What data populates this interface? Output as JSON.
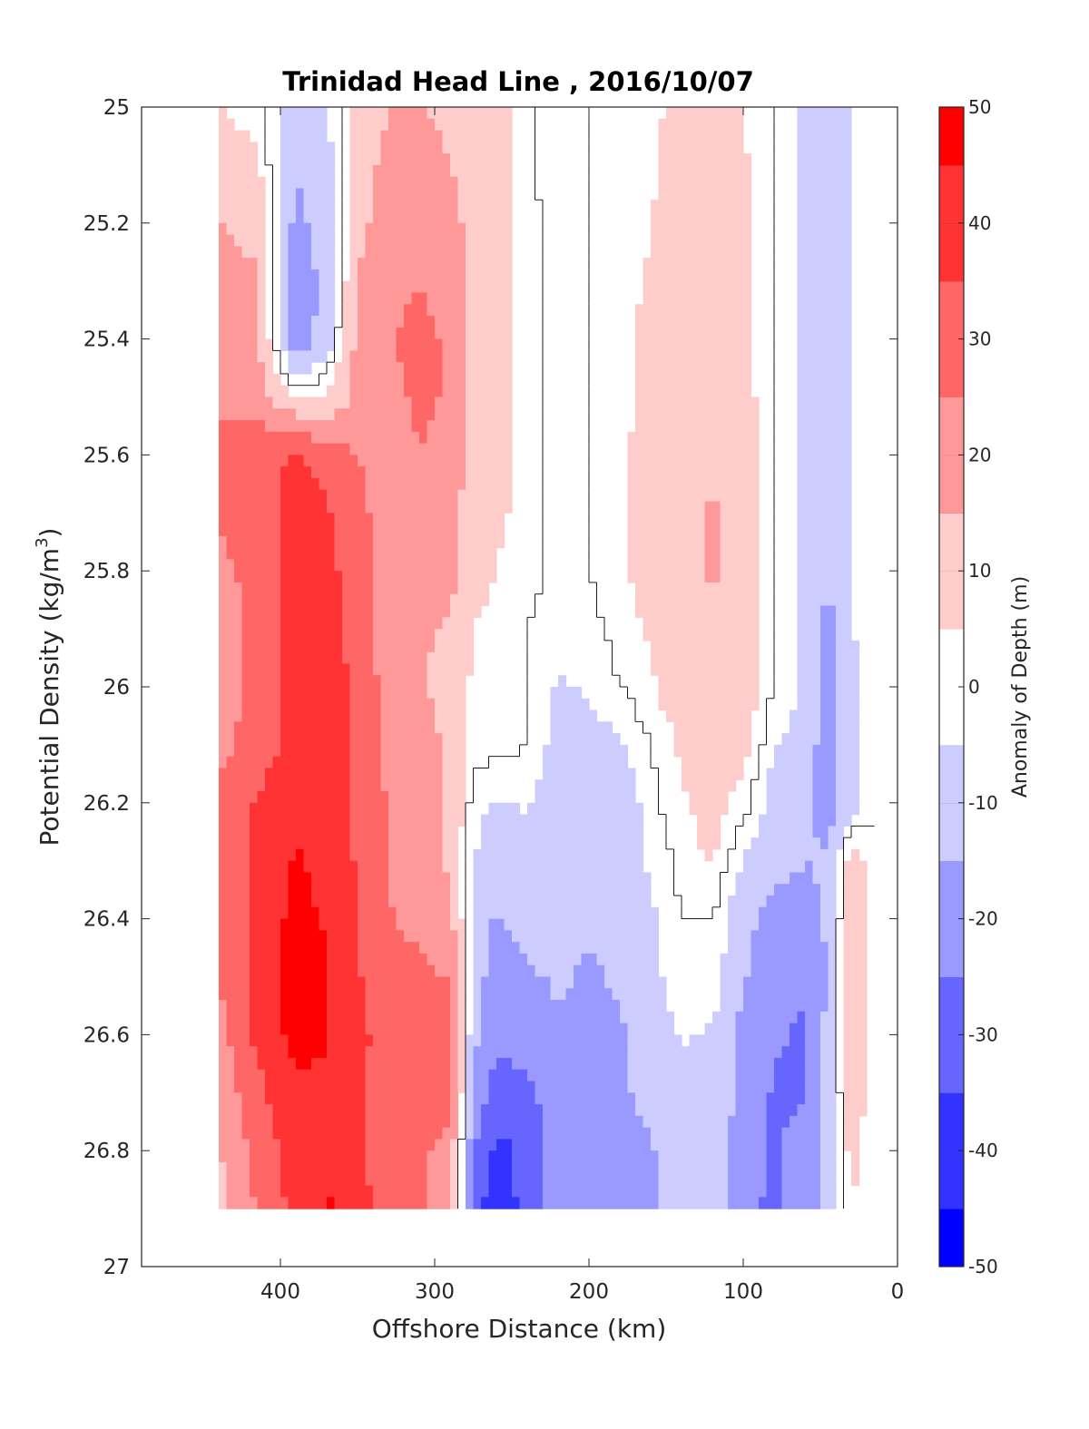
{
  "chart_data": {
    "type": "contourf",
    "title": "Trinidad Head Line , 2016/10/07",
    "xlabel": "Offshore Distance (km)",
    "ylabel_main": "Potential Density (kg/m",
    "ylabel_sup": "3",
    "ylabel_close": ")",
    "colorbar_label": "Anomaly of Depth (m)",
    "xlim": [
      490,
      0
    ],
    "x_reversed": true,
    "ylim": [
      25,
      27
    ],
    "y_reversed": true,
    "xticks": [
      400,
      300,
      200,
      100,
      0
    ],
    "xtick_labels": [
      "400",
      "300",
      "200",
      "100",
      "0"
    ],
    "yticks": [
      25,
      25.2,
      25.4,
      25.6,
      25.8,
      26,
      26.2,
      26.4,
      26.6,
      26.8,
      27
    ],
    "ytick_labels": [
      "25",
      "25.2",
      "25.4",
      "25.6",
      "25.8",
      "26",
      "26.2",
      "26.4",
      "26.6",
      "26.8",
      "27"
    ],
    "colorbar": {
      "min": -50,
      "max": 50,
      "step": 5,
      "ticks": [
        50,
        40,
        30,
        20,
        10,
        0,
        -10,
        -20,
        -30,
        -40,
        -50
      ],
      "tick_labels": [
        "50",
        "40",
        "30",
        "20",
        "10",
        "0",
        "-10",
        "-20",
        "-30",
        "-40",
        "-50"
      ],
      "colormap": "blue-white-red"
    },
    "data_extent": {
      "x": [
        440,
        15
      ],
      "y": [
        25,
        26.9
      ]
    },
    "x": [
      440,
      415,
      390,
      370,
      350,
      330,
      310,
      290,
      275,
      260,
      240,
      220,
      200,
      180,
      160,
      140,
      120,
      100,
      80,
      60,
      45,
      30,
      15
    ],
    "y": [
      25.0,
      25.1,
      25.2,
      25.3,
      25.4,
      25.5,
      25.6,
      25.7,
      25.8,
      25.9,
      26.0,
      26.1,
      26.2,
      26.3,
      26.4,
      26.5,
      26.6,
      26.7,
      26.8,
      26.9
    ],
    "anomaly": [
      [
        5,
        2,
        -12,
        -6,
        8,
        15,
        16,
        12,
        10,
        8,
        2,
        -5,
        0,
        0,
        3,
        8,
        10,
        5,
        0,
        -8,
        -10,
        -6,
        0
      ],
      [
        10,
        6,
        -15,
        -8,
        10,
        18,
        20,
        15,
        10,
        8,
        2,
        -5,
        0,
        1,
        4,
        8,
        10,
        6,
        0,
        -8,
        -10,
        -6,
        0
      ],
      [
        15,
        12,
        -18,
        -10,
        12,
        20,
        22,
        18,
        12,
        8,
        3,
        -4,
        0,
        1,
        5,
        8,
        10,
        6,
        0,
        -8,
        -10,
        -5,
        0
      ],
      [
        18,
        16,
        -22,
        -12,
        15,
        22,
        25,
        22,
        12,
        8,
        3,
        -4,
        0,
        2,
        6,
        10,
        10,
        6,
        0,
        -8,
        -10,
        -5,
        0
      ],
      [
        18,
        16,
        -22,
        -10,
        18,
        25,
        27,
        24,
        12,
        8,
        3,
        -3,
        0,
        3,
        7,
        10,
        10,
        6,
        0,
        -8,
        -10,
        -5,
        0
      ],
      [
        22,
        20,
        5,
        5,
        18,
        22,
        27,
        24,
        10,
        8,
        3,
        -3,
        0,
        3,
        7,
        10,
        12,
        8,
        0,
        -8,
        -10,
        -5,
        0
      ],
      [
        28,
        32,
        36,
        32,
        25,
        20,
        25,
        22,
        10,
        8,
        3,
        -2,
        0,
        4,
        8,
        12,
        14,
        10,
        0,
        -8,
        -10,
        -5,
        0
      ],
      [
        26,
        32,
        38,
        36,
        28,
        20,
        22,
        20,
        8,
        6,
        3,
        -2,
        0,
        4,
        8,
        12,
        16,
        12,
        0,
        -8,
        -12,
        -4,
        -3
      ],
      [
        22,
        30,
        38,
        38,
        30,
        20,
        20,
        18,
        8,
        5,
        2,
        -2,
        0,
        4,
        8,
        12,
        16,
        12,
        0,
        -8,
        -15,
        -5,
        -3
      ],
      [
        15,
        30,
        38,
        38,
        32,
        18,
        16,
        14,
        5,
        2,
        0,
        -3,
        -2,
        2,
        6,
        10,
        14,
        10,
        0,
        -6,
        -18,
        -5,
        -2
      ],
      [
        18,
        28,
        38,
        38,
        34,
        20,
        16,
        12,
        3,
        0,
        0,
        -6,
        -4,
        0,
        4,
        10,
        14,
        10,
        0,
        -6,
        -20,
        -8,
        0
      ],
      [
        22,
        30,
        38,
        38,
        34,
        22,
        18,
        14,
        3,
        2,
        0,
        -8,
        -8,
        -6,
        0,
        6,
        12,
        8,
        -5,
        -8,
        -22,
        -8,
        0
      ],
      [
        28,
        36,
        42,
        40,
        34,
        24,
        18,
        14,
        -3,
        -6,
        -4,
        -10,
        -10,
        -10,
        -2,
        4,
        8,
        2,
        -8,
        -12,
        -20,
        -8,
        0
      ],
      [
        28,
        36,
        46,
        42,
        34,
        24,
        18,
        14,
        -5,
        -8,
        -10,
        -12,
        -12,
        -10,
        -4,
        2,
        6,
        -5,
        -12,
        -15,
        -14,
        10,
        0
      ],
      [
        28,
        38,
        48,
        44,
        34,
        26,
        22,
        18,
        -8,
        -16,
        -12,
        -12,
        -14,
        -12,
        -6,
        0,
        0,
        -12,
        -18,
        -18,
        -14,
        14,
        0
      ],
      [
        26,
        38,
        50,
        46,
        36,
        28,
        28,
        24,
        -10,
        -20,
        -16,
        -14,
        -16,
        -14,
        -8,
        0,
        0,
        -14,
        -22,
        -24,
        -14,
        18,
        0
      ],
      [
        20,
        38,
        48,
        46,
        38,
        30,
        34,
        30,
        -12,
        -22,
        -20,
        -16,
        -16,
        -16,
        -10,
        -4,
        -6,
        -18,
        -24,
        -26,
        -12,
        16,
        0
      ],
      [
        18,
        32,
        44,
        42,
        38,
        30,
        32,
        28,
        -18,
        -30,
        -28,
        -18,
        -16,
        -16,
        -12,
        -8,
        -8,
        -18,
        -26,
        -26,
        -12,
        12,
        0
      ],
      [
        14,
        28,
        40,
        44,
        38,
        28,
        26,
        22,
        -24,
        -38,
        -32,
        -20,
        -18,
        -22,
        -16,
        -10,
        -10,
        -20,
        -26,
        -22,
        -10,
        8,
        0
      ],
      [
        12,
        26,
        38,
        46,
        40,
        28,
        26,
        22,
        -28,
        -44,
        -30,
        -20,
        -18,
        -24,
        -18,
        -10,
        -8,
        -24,
        -26,
        -22,
        -8,
        4,
        0
      ]
    ]
  }
}
